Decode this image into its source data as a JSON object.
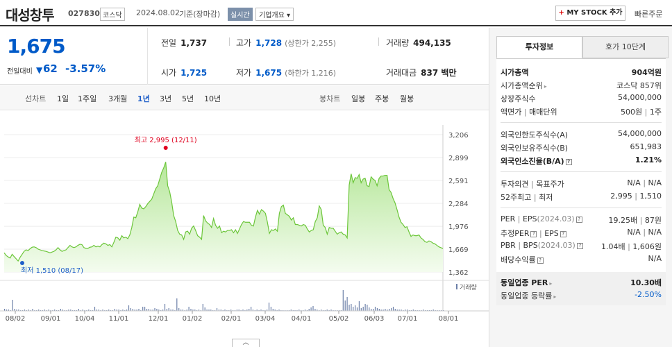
{
  "header": {
    "name": "대성창투",
    "code": "027830",
    "market": "코스닥",
    "date": "2024.08.02",
    "basis": "기준(장마감)",
    "realtime": "실시간",
    "company_info": "기업개요",
    "my_stock": "MY STOCK 추가",
    "quick_order": "빠른주문"
  },
  "summary": {
    "price": "1,675",
    "change_label": "전일대비",
    "change": "62",
    "change_pct": "-3.57%",
    "prev_close_label": "전일",
    "prev_close": "1,737",
    "high_label": "고가",
    "high": "1,728",
    "upper_limit": "(상한가 2,255)",
    "volume_label": "거래량",
    "volume": "494,135",
    "open_label": "시가",
    "open": "1,725",
    "low_label": "저가",
    "low": "1,675",
    "lower_limit": "(하한가 1,216)",
    "amount_label": "거래대금",
    "amount": "837 백만"
  },
  "periods": {
    "line_label": "선차트",
    "items": [
      "1일",
      "1주일",
      "3개월",
      "1년",
      "3년",
      "5년",
      "10년"
    ],
    "active": "1년",
    "candle_label": "봉차트",
    "candle_items": [
      "일봉",
      "주봉",
      "월봉"
    ]
  },
  "chart_data": {
    "type": "area",
    "period": "1년",
    "x_ticks": [
      "08/02",
      "09/01",
      "10/04",
      "11/01",
      "12/01",
      "01/02",
      "02/01",
      "03/04",
      "04/01",
      "05/02",
      "06/03",
      "07/01",
      "08/01"
    ],
    "y_ticks": [
      3206,
      2899,
      2591,
      2284,
      1976,
      1669,
      1362
    ],
    "ylim": [
      1362,
      3206
    ],
    "volume_label": "거래량",
    "high_annotation": "최고 2,995 (12/11)",
    "low_annotation": "최저 1,510 (08/17)",
    "series": [
      {
        "values": [
          1620,
          1585,
          1565,
          1550,
          1600,
          1570,
          1540,
          1510,
          1560,
          1600,
          1640,
          1660,
          1650,
          1675,
          1695,
          1700,
          1690,
          1670,
          1660,
          1650,
          1645,
          1640,
          1630,
          1620,
          1630,
          1640,
          1660,
          1690,
          1660,
          1640,
          1650,
          1660,
          1690,
          1720,
          1700,
          1690,
          1700,
          1720,
          1735,
          1730,
          1690,
          1680,
          1680,
          1695,
          1700,
          1720,
          1700,
          1710,
          1700,
          1730,
          1750,
          1740,
          1720,
          1730,
          1700,
          1760,
          1830,
          1820,
          1790,
          1850,
          1820,
          1830,
          1810,
          1860,
          1960,
          2100,
          2090,
          2170,
          2270,
          2220,
          2210,
          2240,
          2280,
          2310,
          2340,
          2410,
          2480,
          2520,
          2610,
          2700,
          2760,
          2840,
          2520,
          2440,
          2300,
          2120,
          2040,
          1920,
          1870,
          1860,
          1800,
          1900,
          1910,
          1870,
          1950,
          1980,
          1920,
          1850,
          1830,
          1800,
          2120,
          2050,
          2020,
          2000,
          1960,
          2080,
          1990,
          1950,
          1980,
          1890,
          1910,
          1900,
          1920,
          1920,
          1930,
          1890,
          1930,
          1880,
          1940,
          2000,
          2040,
          2030,
          2030,
          2030,
          1990,
          1980,
          2100,
          2190,
          2140,
          2200,
          2180,
          2150,
          2030,
          1880,
          1930,
          1920,
          1940,
          1910,
          2150,
          2240,
          2260,
          2150,
          2130,
          2110,
          2060,
          2090,
          2000,
          2000,
          1990,
          1980,
          2000,
          1990,
          1940,
          1900,
          1920,
          1930,
          2040,
          2090,
          2250,
          2200,
          1990,
          1960,
          1870,
          1960,
          1950,
          1950,
          1910,
          1870,
          1890,
          1900,
          1870,
          1860,
          1820,
          2530,
          2680,
          2560,
          2630,
          2620,
          2670,
          2560,
          2610,
          2620,
          2520,
          2510,
          2640,
          2610,
          2590,
          2520,
          2620,
          2650,
          2650,
          2660,
          2660,
          2470,
          2430,
          2350,
          2290,
          2200,
          2100,
          2030,
          2000,
          1960,
          1970,
          1900,
          1840,
          1860,
          1850,
          1850,
          1860,
          1820,
          1800,
          1770,
          1760,
          1780,
          1770,
          1750,
          1740,
          1720,
          1700,
          1690,
          1675
        ]
      }
    ]
  },
  "side": {
    "tab_invest": "투자정보",
    "tab_order": "호가 10단계",
    "market_cap_label": "시가총액",
    "market_cap": "904억원",
    "rank_label": "시가총액순위",
    "rank": "코스닥 857위",
    "shares_label": "상장주식수",
    "shares": "54,000,000",
    "par_label": "액면가",
    "unit_label": "매매단위",
    "par": "500원",
    "unit": "1주",
    "foreign_limit_label": "외국인한도주식수(A)",
    "foreign_limit": "54,000,000",
    "foreign_hold_label": "외국인보유주식수(B)",
    "foreign_hold": "651,983",
    "foreign_ratio_label": "외국인소진율(B/A)",
    "foreign_ratio": "1.21%",
    "opinion_label": "투자의견",
    "target_label": "목표주가",
    "opinion": "N/A",
    "target": "N/A",
    "w52_high_label": "52주최고",
    "w52_low_label": "최저",
    "w52_high": "2,995",
    "w52_low": "1,510",
    "per_label": "PER",
    "eps_label": "EPS",
    "eps_year": "(2024.03)",
    "per": "19.25배",
    "eps": "87원",
    "est_per_label": "추정PER",
    "est_eps_label": "EPS",
    "est_per": "N/A",
    "est_eps": "N/A",
    "pbr_label": "PBR",
    "bps_label": "BPS",
    "bps_year": "(2024.03)",
    "pbr": "1.04배",
    "bps": "1,606원",
    "div_label": "배당수익률",
    "div": "N/A",
    "ind_per_label": "동일업종 PER",
    "ind_per": "10.30배",
    "ind_rate_label": "동일업종 등락률",
    "ind_rate": "-2.50%"
  }
}
